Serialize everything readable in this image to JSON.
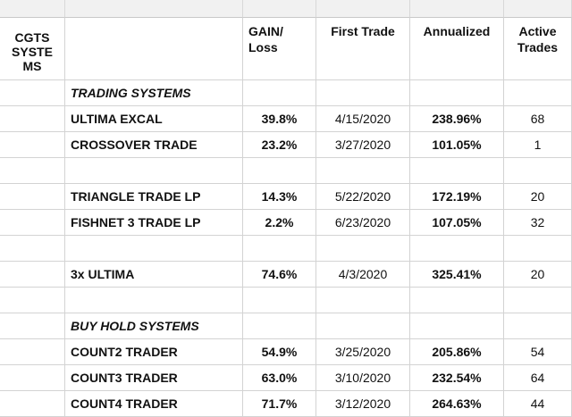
{
  "header": {
    "system": "CGTS SYSTEMS",
    "gain_loss": "GAIN/ Loss",
    "first_trade": "First Trade",
    "annualized": "Annualized",
    "active_trades": "Active Trades"
  },
  "sections": {
    "trading": "TRADING SYSTEMS",
    "buy_hold": "BUY HOLD SYSTEMS"
  },
  "rows": [
    {
      "name": "ULTIMA EXCAL",
      "gain": "39.8%",
      "first_trade": "4/15/2020",
      "annualized": "238.96%",
      "active": "68"
    },
    {
      "name": "CROSSOVER TRADE",
      "gain": "23.2%",
      "first_trade": "3/27/2020",
      "annualized": "101.05%",
      "active": "1"
    },
    {
      "name": "TRIANGLE TRADE LP",
      "gain": "14.3%",
      "first_trade": "5/22/2020",
      "annualized": "172.19%",
      "active": "20"
    },
    {
      "name": "FISHNET 3 TRADE LP",
      "gain": "2.2%",
      "first_trade": "6/23/2020",
      "annualized": "107.05%",
      "active": "32"
    },
    {
      "name": "3x ULTIMA",
      "gain": "74.6%",
      "first_trade": "4/3/2020",
      "annualized": "325.41%",
      "active": "20"
    },
    {
      "name": "COUNT2 TRADER",
      "gain": "54.9%",
      "first_trade": "3/25/2020",
      "annualized": "205.86%",
      "active": "54"
    },
    {
      "name": "COUNT3 TRADER",
      "gain": "63.0%",
      "first_trade": "3/10/2020",
      "annualized": "232.54%",
      "active": "64"
    },
    {
      "name": "COUNT4 TRADER",
      "gain": "71.7%",
      "first_trade": "3/12/2020",
      "annualized": "264.63%",
      "active": "44"
    }
  ]
}
